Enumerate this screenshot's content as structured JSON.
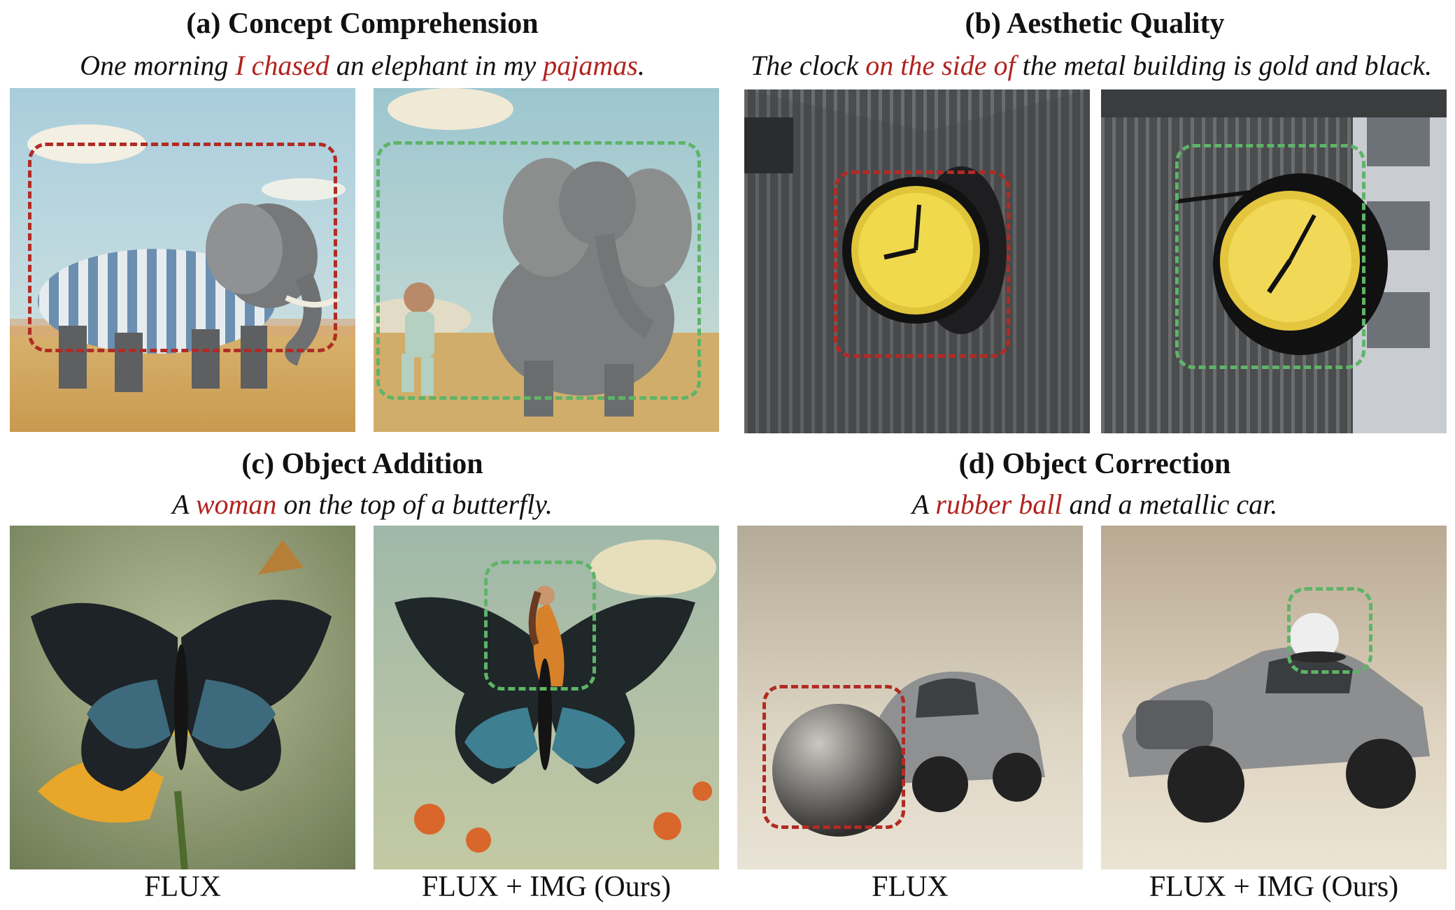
{
  "panels": [
    {
      "title": "(a) Concept Comprehension",
      "prompt": [
        "One morning ",
        "I chased",
        " an elephant in my ",
        "pajamas",
        "."
      ]
    },
    {
      "title": "(b) Aesthetic Quality",
      "prompt": [
        "The clock ",
        "on the side of",
        " the metal building is gold and black."
      ]
    },
    {
      "title": "(c) Object Addition",
      "prompt": [
        "A ",
        "woman",
        " on the top of a butterfly."
      ]
    },
    {
      "title": "(d) Object Correction",
      "prompt": [
        "A ",
        "rubber ball",
        " and a metallic car."
      ]
    }
  ],
  "captions": {
    "baseline": "FLUX",
    "ours": "FLUX + IMG (Ours)"
  },
  "colors": {
    "highlight": "#b0231f",
    "baseline_box": "#b12b24",
    "ours_box": "#5eb467"
  }
}
